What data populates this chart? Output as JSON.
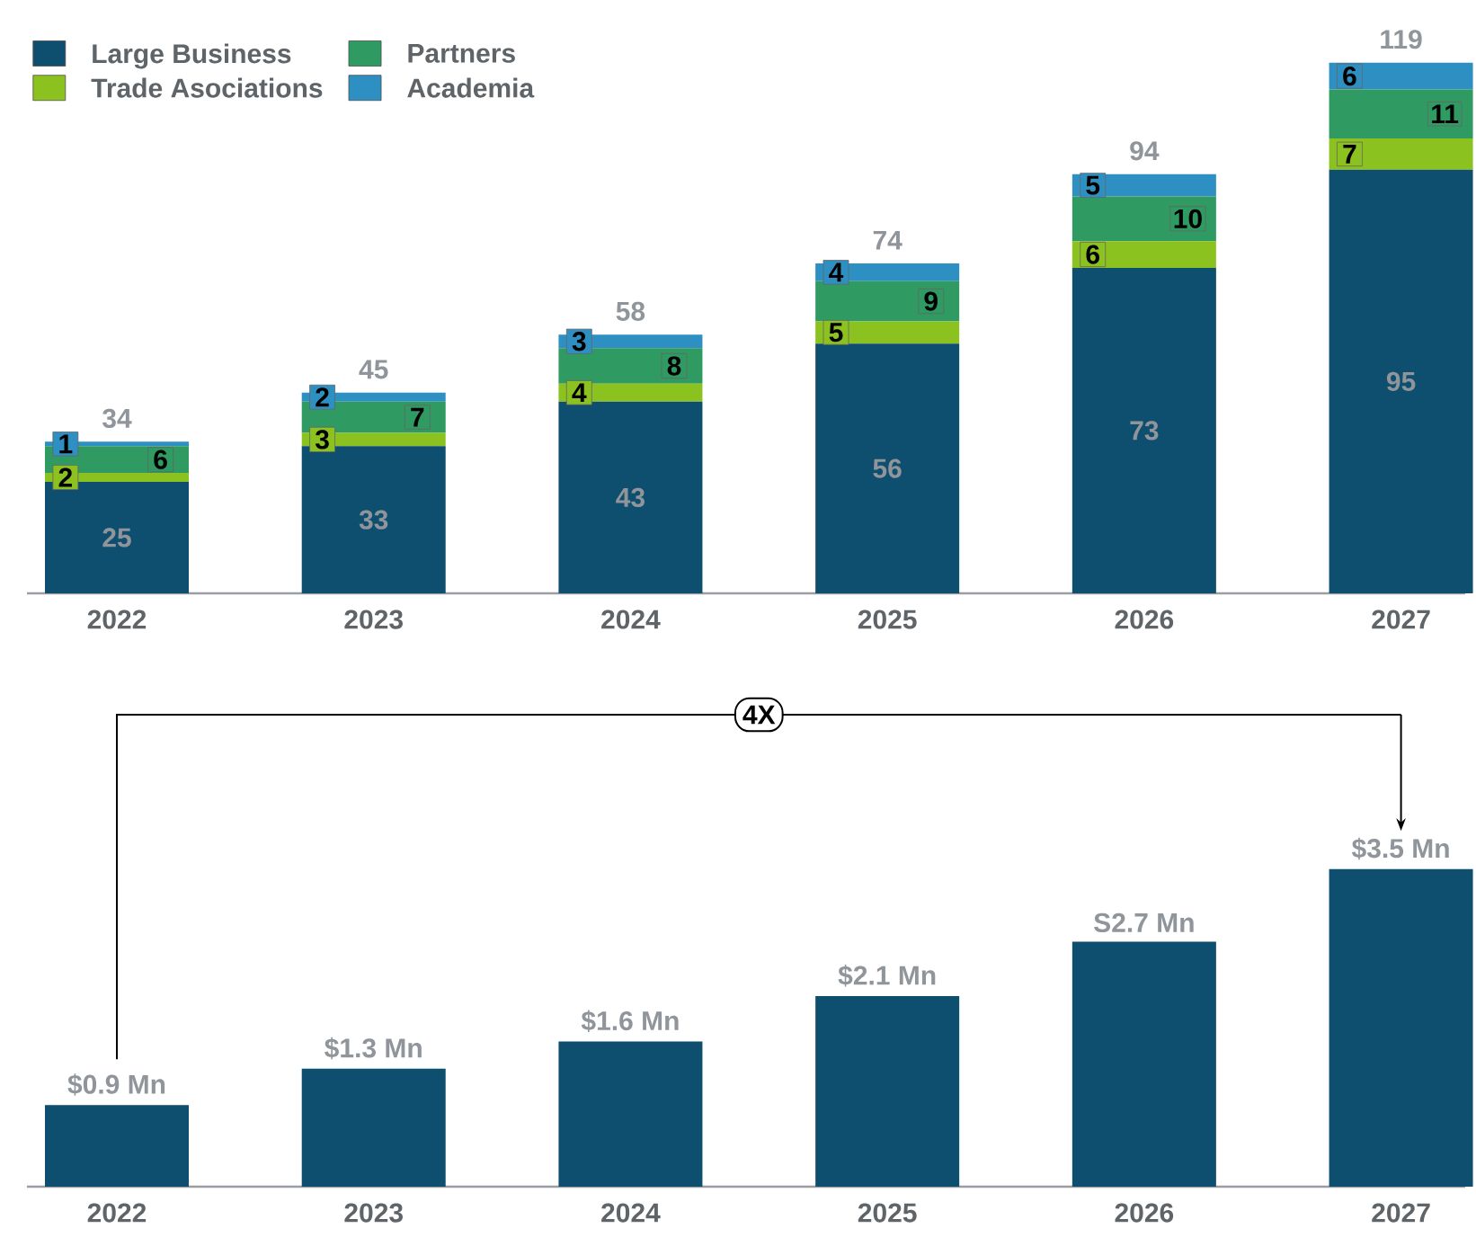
{
  "chart_data": [
    {
      "type": "bar",
      "stacked": true,
      "data_labels": true,
      "legend": "top left",
      "tick_labels": "x",
      "ylim": [
        0,
        125
      ],
      "categories": [
        "2022",
        "2023",
        "2024",
        "2025",
        "2026",
        "2027"
      ],
      "series": [
        {
          "name": "Large Business",
          "color": "#0e4e6e",
          "values": [
            25,
            33,
            43,
            56,
            73,
            95
          ]
        },
        {
          "name": "Trade Asociations",
          "color": "#8cc21f",
          "values": [
            2,
            3,
            4,
            5,
            6,
            7
          ]
        },
        {
          "name": "Partners",
          "color": "#2f9a62",
          "values": [
            6,
            7,
            8,
            9,
            10,
            11
          ]
        },
        {
          "name": "Academia",
          "color": "#2e90c2",
          "values": [
            1,
            2,
            3,
            4,
            5,
            6
          ]
        }
      ],
      "totals": [
        "34",
        "45",
        "58",
        "74",
        "94",
        "119"
      ]
    },
    {
      "type": "bar",
      "tick_labels": "x",
      "color": "#0e4e6e",
      "categories": [
        "2022",
        "2023",
        "2024",
        "2025",
        "2026",
        "2027"
      ],
      "values": [
        0.9,
        1.3,
        1.6,
        2.1,
        2.7,
        3.5
      ],
      "value_labels": [
        "$0.9 Mn",
        "$1.3 Mn",
        "$1.6 Mn",
        "$2.1 Mn",
        "S2.7 Mn",
        "$3.5 Mn"
      ],
      "annotations": [
        "4X"
      ]
    }
  ]
}
